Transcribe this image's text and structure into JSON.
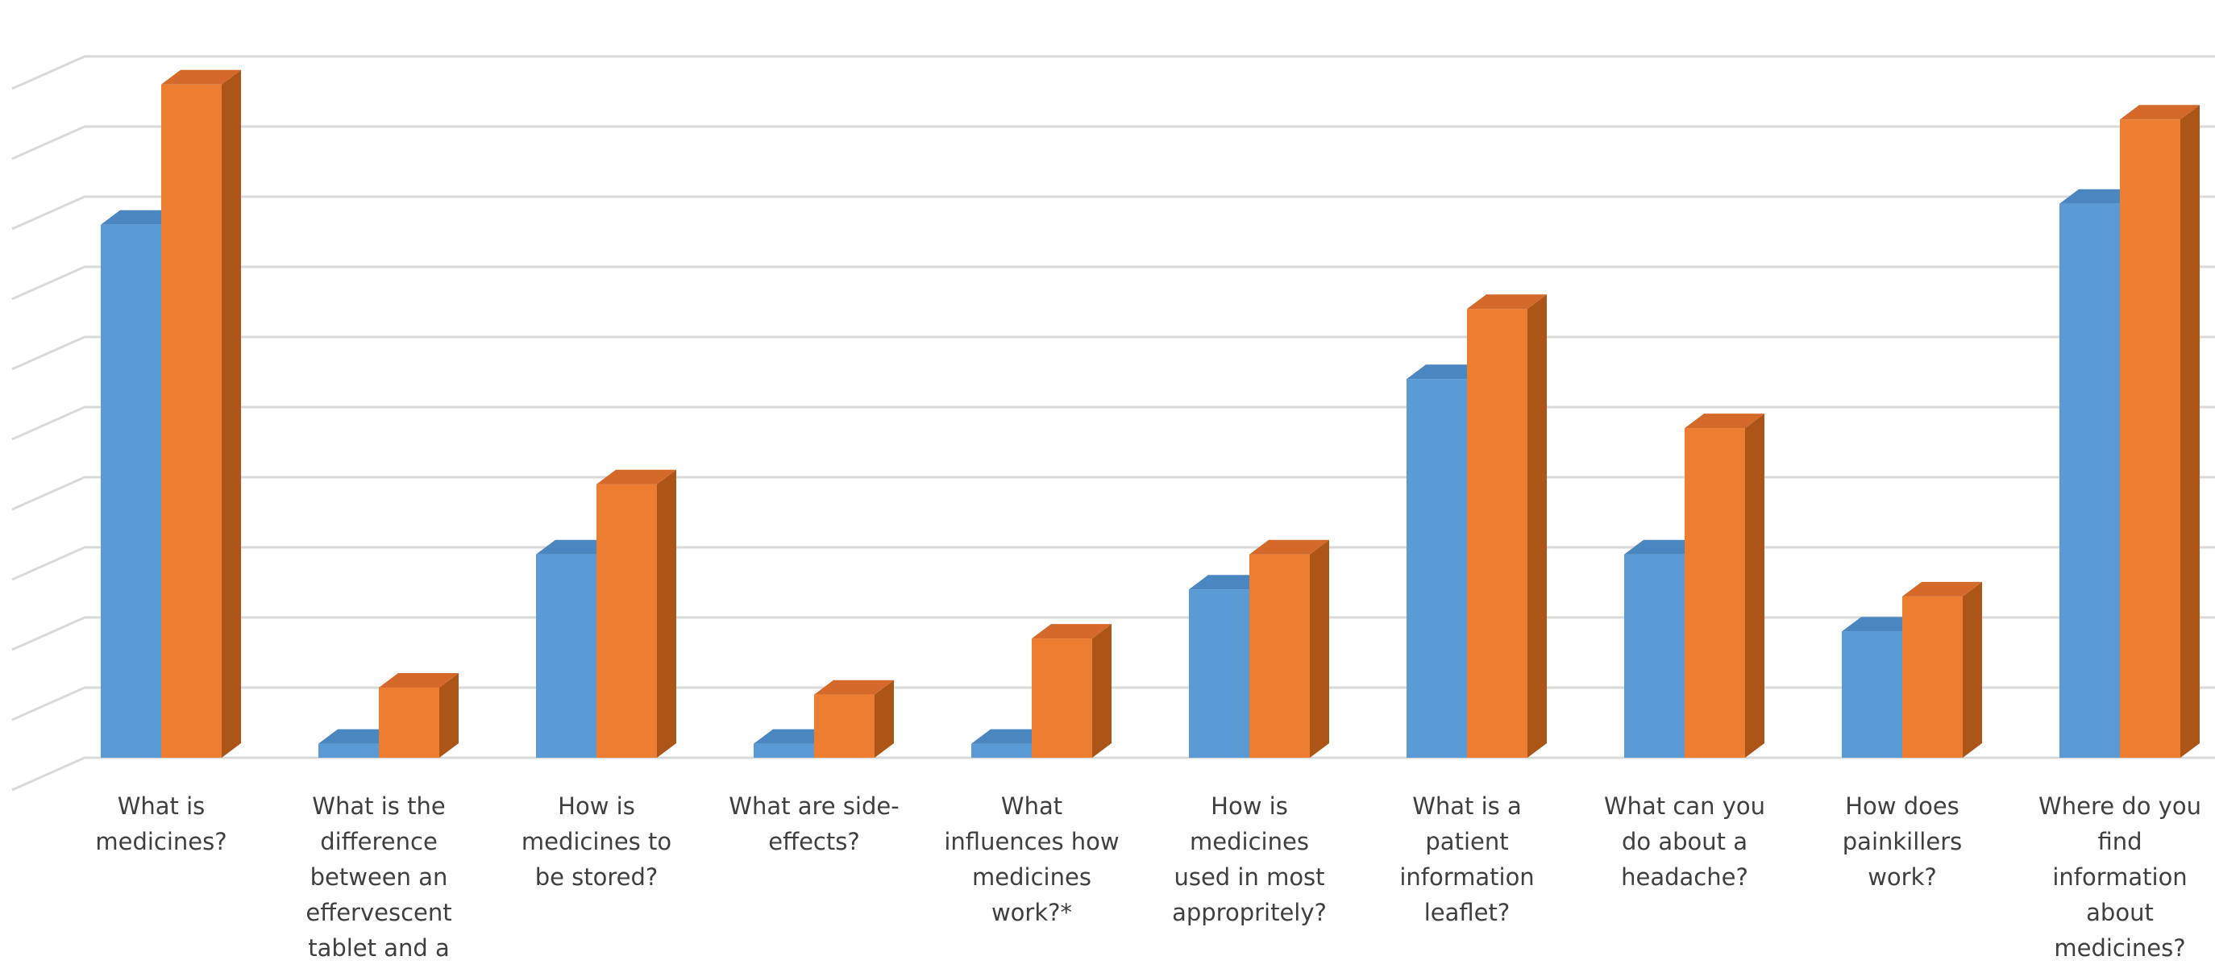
{
  "chart_data": {
    "type": "bar",
    "categories": [
      "What is medicines?",
      "What is the difference between an effervescent tablet and a",
      "How is medicines to be stored?",
      "What are side-effects?",
      "What influences how medicines work?*",
      "How is medicines used in most appropritely?",
      "What is a patient information leaflet?",
      "What can you do about a headache?",
      "How does painkillers work?",
      "Where do you find information about medicines?"
    ],
    "series": [
      {
        "values": [
          7.6,
          0.2,
          2.9,
          0.2,
          0.2,
          2.4,
          5.4,
          2.9,
          1.8,
          7.9
        ]
      },
      {
        "values": [
          9.6,
          1.0,
          3.9,
          0.9,
          1.7,
          2.9,
          6.4,
          4.7,
          2.3,
          9.1
        ]
      }
    ],
    "ylim": [
      0,
      10
    ],
    "grid": true,
    "colors": {
      "series_front": [
        "#5b9bd5",
        "#ed7d31"
      ],
      "series_side": [
        "#3f6f9e",
        "#ad5417"
      ],
      "series_top": [
        "#4a86c0",
        "#d4692a"
      ],
      "grid": "#d9d9d9",
      "axis_text": "#3f3f3f"
    }
  }
}
